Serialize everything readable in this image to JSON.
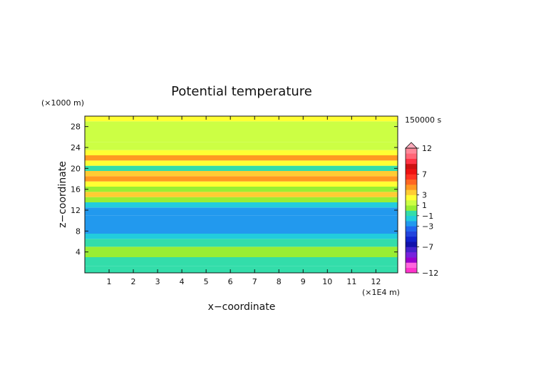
{
  "chart_data": {
    "type": "heatmap",
    "title": "Potential temperature",
    "xlabel": "x−coordinate",
    "ylabel": "z−coordinate",
    "x_unit": "(×1E4 m)",
    "y_unit": "(×1000 m)",
    "time_label": "150000 s",
    "xlim": [
      0,
      12.9
    ],
    "ylim": [
      0,
      30
    ],
    "x_ticks": [
      "1",
      "2",
      "3",
      "4",
      "5",
      "6",
      "7",
      "8",
      "9",
      "10",
      "11",
      "12"
    ],
    "y_ticks": [
      "4",
      "8",
      "12",
      "16",
      "20",
      "24",
      "28"
    ],
    "levels": [
      -12,
      -11,
      -10,
      -9,
      -8,
      -7,
      -6,
      -5,
      -4,
      -3,
      -2,
      -1,
      0,
      1,
      2,
      3,
      4,
      5,
      6,
      7,
      8,
      9,
      10,
      11,
      12
    ],
    "colorbar_labels": [
      "12",
      "7",
      "3",
      "1",
      "−1",
      "−3",
      "−7",
      "−12"
    ],
    "colors": {
      "-12": "#ff33cc",
      "-11": "#ff66dd",
      "-10": "#9900cc",
      "-9": "#7722dd",
      "-8": "#4422cc",
      "-7": "#1111aa",
      "-6": "#1122cc",
      "-5": "#2244dd",
      "-4": "#2266ee",
      "-3": "#2299ee",
      "-2": "#22ccdd",
      "-1": "#33ddaa",
      "0": "#99ee33",
      "1": "#ccff44",
      "2": "#ffff33",
      "3": "#ffcc33",
      "4": "#ff9922",
      "5": "#ff6622",
      "6": "#ff3322",
      "7": "#ee1111",
      "8": "#cc1111",
      "9": "#ff3344",
      "10": "#ff6677",
      "11": "#ff8899",
      "12": "#ffaabb"
    },
    "z_profile": [
      {
        "z": 0.5,
        "value": -1.5
      },
      {
        "z": 2,
        "value": -1
      },
      {
        "z": 4,
        "value": -0.5
      },
      {
        "z": 6,
        "value": -1
      },
      {
        "z": 7,
        "value": -2
      },
      {
        "z": 8,
        "value": -3
      },
      {
        "z": 10,
        "value": -3.5
      },
      {
        "z": 12,
        "value": -3
      },
      {
        "z": 13,
        "value": -2
      },
      {
        "z": 14,
        "value": 0
      },
      {
        "z": 15,
        "value": 2.5
      },
      {
        "z": 16,
        "value": 0
      },
      {
        "z": 17,
        "value": 2
      },
      {
        "z": 18,
        "value": 4
      },
      {
        "z": 19,
        "value": 3
      },
      {
        "z": 20,
        "value": -1
      },
      {
        "z": 21,
        "value": 2
      },
      {
        "z": 22,
        "value": 4
      },
      {
        "z": 23,
        "value": 2
      },
      {
        "z": 24,
        "value": 1
      },
      {
        "z": 26,
        "value": 0.5
      },
      {
        "z": 28,
        "value": 1
      },
      {
        "z": 30,
        "value": 1.5
      }
    ]
  }
}
